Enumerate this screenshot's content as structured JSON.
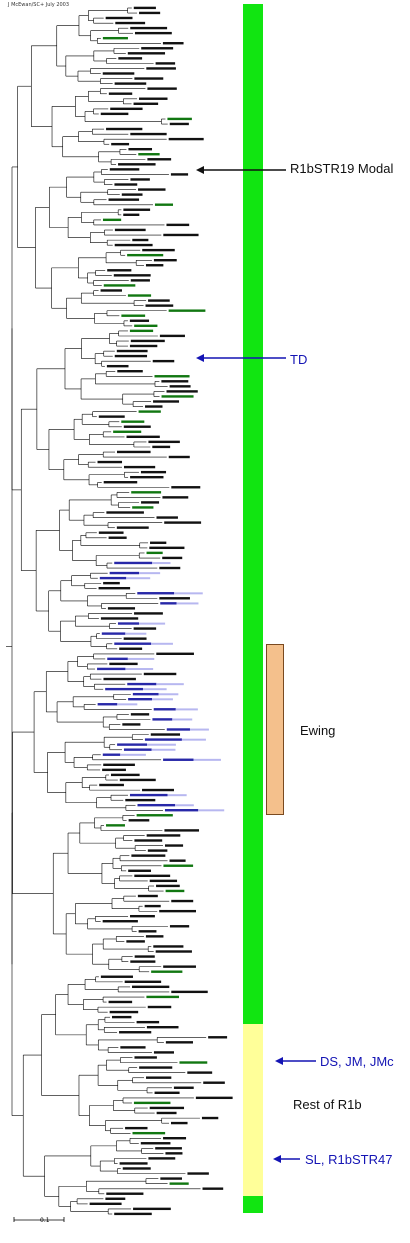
{
  "credit": "J McEwan/SC+ July 2003",
  "scale_bar_label": "0.1",
  "colors": {
    "green_band": "#11e511",
    "yellow_band": "#ffff99",
    "ewing_box": "#f4c08c",
    "ewing_box_border": "#7a4a20",
    "blue_label": "#1414b4",
    "black_label": "#111111",
    "green_leaf": "#117711",
    "blue_leaf": "#2828a8",
    "tree_line": "#000000"
  },
  "annotations": {
    "modal": "R1bSTR19 Modal",
    "td": "TD",
    "ewing": "Ewing",
    "ds": "DS, JM, JMc",
    "rest": "Rest of R1b",
    "sl": "SL, R1bSTR47"
  },
  "icons": {
    "arrow_modal": "arrow-left-icon",
    "arrow_td": "arrow-left-icon",
    "arrow_ds": "arrow-left-icon",
    "arrow_sl": "arrow-left-icon"
  }
}
